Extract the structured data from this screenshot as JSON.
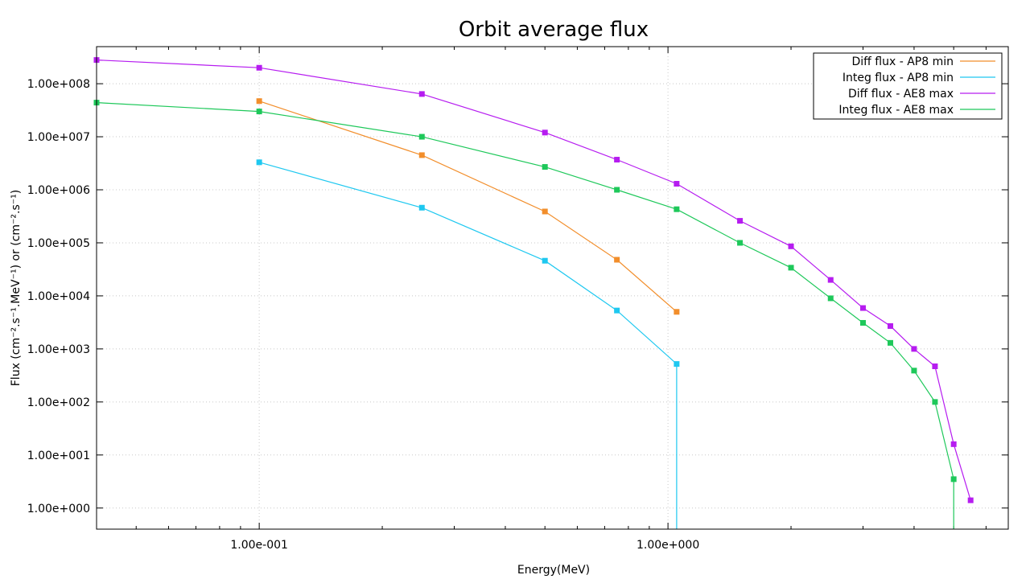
{
  "chart_data": {
    "type": "line",
    "title": "Orbit average flux",
    "xlabel": "Energy(MeV)",
    "ylabel": "Flux (cm⁻².s⁻¹.MeV⁻¹) or (cm⁻².s⁻¹)",
    "xscale": "log",
    "yscale": "log",
    "xlim": [
      0.04,
      6.8
    ],
    "ylim": [
      0.4,
      500000000
    ],
    "x_tick_labels": [
      {
        "value": 0.1,
        "label": "1.00e-001"
      },
      {
        "value": 1.0,
        "label": "1.00e+000"
      }
    ],
    "y_tick_labels": [
      {
        "value": 1,
        "label": "1.00e+000"
      },
      {
        "value": 10,
        "label": "1.00e+001"
      },
      {
        "value": 100,
        "label": "1.00e+002"
      },
      {
        "value": 1000,
        "label": "1.00e+003"
      },
      {
        "value": 10000,
        "label": "1.00e+004"
      },
      {
        "value": 100000,
        "label": "1.00e+005"
      },
      {
        "value": 1000000,
        "label": "1.00e+006"
      },
      {
        "value": 10000000,
        "label": "1.00e+007"
      },
      {
        "value": 100000000,
        "label": "1.00e+008"
      }
    ],
    "grid": true,
    "legend_position": "top-right",
    "series": [
      {
        "name": "Diff flux - AP8 min",
        "color": "#f28e2b",
        "points": [
          [
            0.1,
            47000000
          ],
          [
            0.25,
            4500000
          ],
          [
            0.5,
            390000
          ],
          [
            0.75,
            48000
          ],
          [
            1.05,
            5000
          ]
        ],
        "drop_to_bottom": false
      },
      {
        "name": "Integ flux - AP8 min",
        "color": "#1ec8f0",
        "points": [
          [
            0.1,
            3300000
          ],
          [
            0.25,
            460000
          ],
          [
            0.5,
            46000
          ],
          [
            0.75,
            5300
          ],
          [
            1.05,
            520
          ]
        ],
        "drop_to_bottom": true
      },
      {
        "name": "Diff flux - AE8 max",
        "color": "#b61cf0",
        "points": [
          [
            0.04,
            280000000
          ],
          [
            0.1,
            200000000
          ],
          [
            0.25,
            64000000
          ],
          [
            0.5,
            12000000
          ],
          [
            0.75,
            3700000
          ],
          [
            1.05,
            1300000
          ],
          [
            1.5,
            260000
          ],
          [
            2.0,
            86000
          ],
          [
            2.5,
            20000
          ],
          [
            3.0,
            5900
          ],
          [
            3.5,
            2700
          ],
          [
            4.0,
            1000
          ],
          [
            4.5,
            470
          ],
          [
            5.0,
            16
          ],
          [
            5.5,
            1.4
          ]
        ],
        "drop_to_bottom": false
      },
      {
        "name": "Integ flux - AE8 max",
        "color": "#1ec85a",
        "points": [
          [
            0.04,
            44000000
          ],
          [
            0.1,
            30000000
          ],
          [
            0.25,
            10000000
          ],
          [
            0.5,
            2700000
          ],
          [
            0.75,
            1000000
          ],
          [
            1.05,
            430000
          ],
          [
            1.5,
            100000
          ],
          [
            2.0,
            34000
          ],
          [
            2.5,
            9000
          ],
          [
            3.0,
            3100
          ],
          [
            3.5,
            1300
          ],
          [
            4.0,
            390
          ],
          [
            4.5,
            100
          ],
          [
            5.0,
            3.5
          ]
        ],
        "drop_to_bottom": true
      }
    ]
  }
}
